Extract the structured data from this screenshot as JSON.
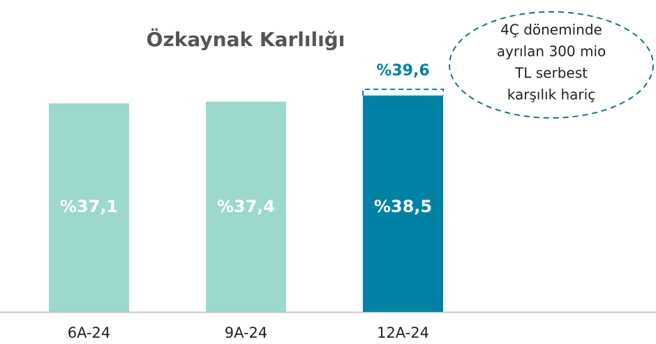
{
  "chart_data": {
    "type": "bar",
    "title": "Özkaynak Karlılığı",
    "categories": [
      "6A-24",
      "9A-24",
      "12A-24"
    ],
    "values": [
      37.1,
      37.4,
      38.5
    ],
    "value_labels": [
      "%37,1",
      "%37,4",
      "%38,5"
    ],
    "colors": [
      "#9dd8cd",
      "#9dd8cd",
      "#0081a6"
    ],
    "adjusted": {
      "category": "12A-24",
      "value": 39.6,
      "label": "%39,6",
      "color": "#0081a6"
    },
    "annotation": [
      "4Ç döneminde",
      "ayrılan 300 mio",
      "TL serbest",
      "karşılık hariç"
    ],
    "ylim": [
      0,
      55
    ]
  }
}
